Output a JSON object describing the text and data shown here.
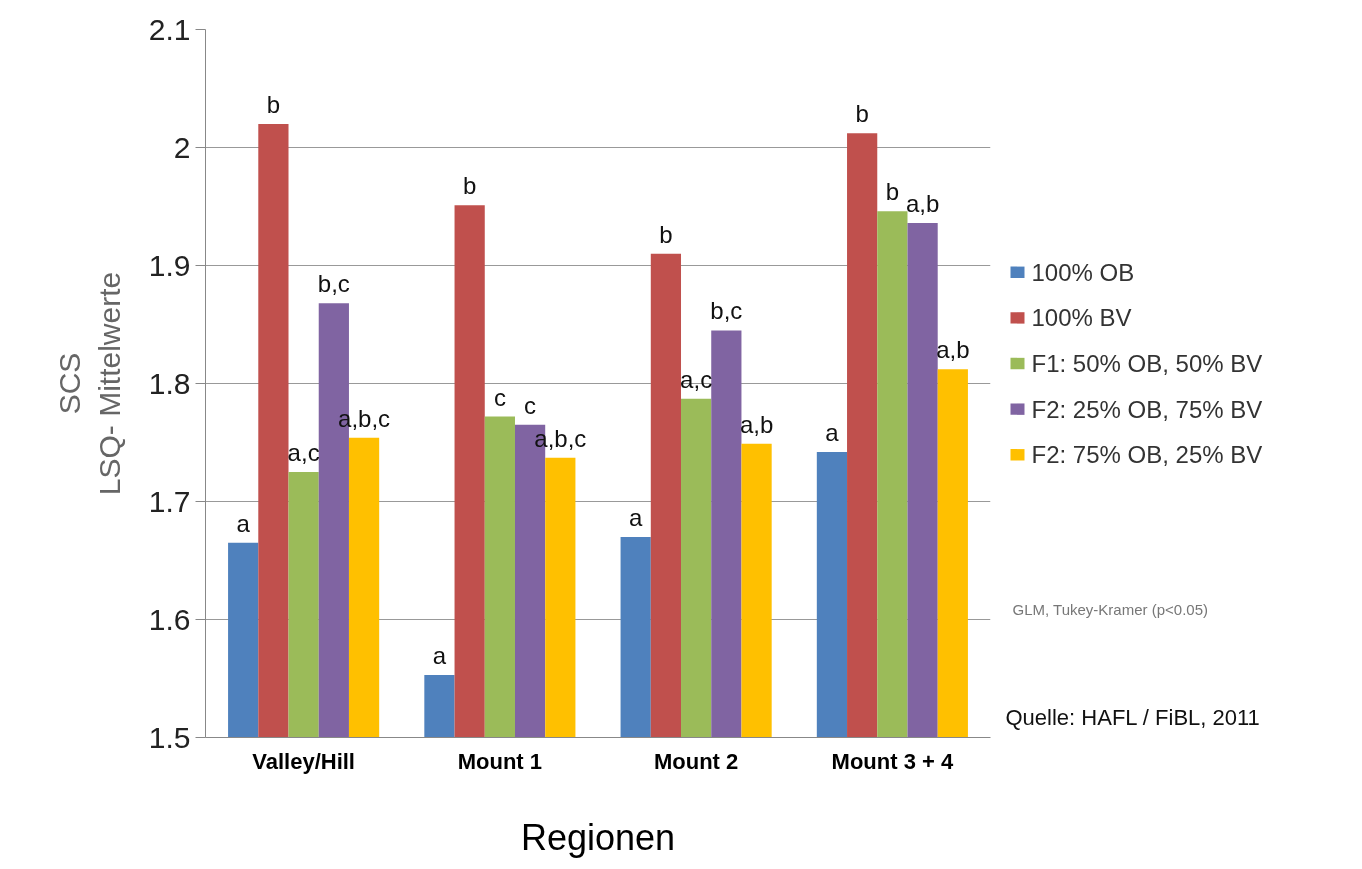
{
  "chart_data": {
    "type": "bar",
    "xlabel": "Regionen",
    "ylabel": "SCS\nLSQ- Mittelwerte",
    "categories": [
      "Valley/Hill",
      "Mount 1",
      "Mount 2",
      "Mount 3 + 4"
    ],
    "series": [
      {
        "name": "100% OB",
        "color": "#4f81bd",
        "values": [
          1.665,
          1.553,
          1.67,
          1.742
        ],
        "value_labels": [
          "a",
          "a",
          "a",
          "a"
        ]
      },
      {
        "name": "100% BV",
        "color": "#c0504d",
        "values": [
          2.02,
          1.951,
          1.91,
          2.012
        ],
        "value_labels": [
          "b",
          "b",
          "b",
          "b"
        ]
      },
      {
        "name": "F1: 50% OB, 50% BV",
        "color": "#9bbb59",
        "values": [
          1.725,
          1.772,
          1.787,
          1.946
        ],
        "value_labels": [
          "a,c",
          "c",
          "a,c",
          "b"
        ]
      },
      {
        "name": "F2: 25% OB, 75% BV",
        "color": "#8064a2",
        "values": [
          1.868,
          1.765,
          1.845,
          1.936
        ],
        "value_labels": [
          "b,c",
          "c",
          "b,c",
          "a,b"
        ]
      },
      {
        "name": "F2: 75% OB, 25% BV",
        "color": "#ffc000",
        "values": [
          1.754,
          1.737,
          1.749,
          1.812
        ],
        "value_labels": [
          "a,b,c",
          "a,b,c",
          "a,b",
          "a,b"
        ]
      }
    ],
    "ylim": [
      1.5,
      2.1
    ],
    "yticks": [
      1.5,
      1.6,
      1.7,
      1.8,
      1.9,
      2,
      2.1
    ],
    "grid": "y",
    "legend": "right",
    "annotations": [
      "GLM, Tukey-Kramer  (p<0.05)",
      "Quelle: HAFL / FiBL, 2011"
    ]
  }
}
